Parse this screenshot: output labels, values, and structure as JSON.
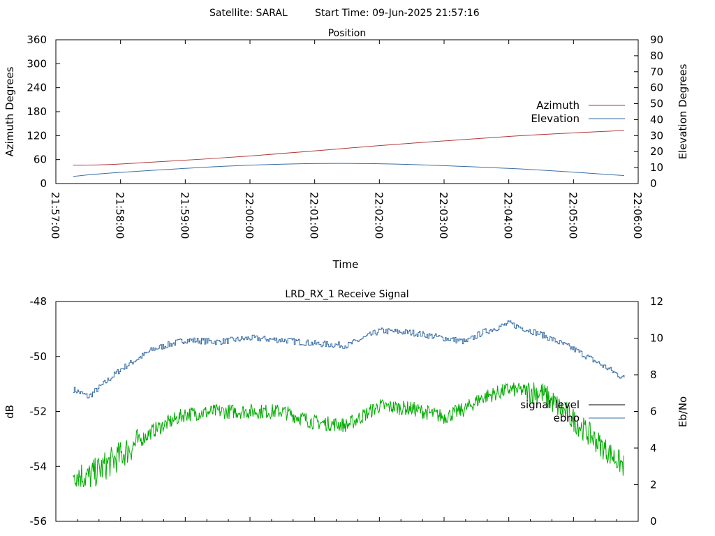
{
  "header": {
    "satellite": "Satellite: SARAL",
    "start_time": "Start Time: 09-Jun-2025 21:57:16"
  },
  "colors": {
    "azimuth": "#b03a3a",
    "elevation": "#3a6ea5",
    "signal": "#00aa00",
    "ebno": "#3a6ea5",
    "legend_signal": "#000000"
  },
  "chart_data": [
    {
      "type": "line",
      "title": "Position",
      "xlabel": "Time",
      "ylabel": "Azimuth Degrees",
      "y2label": "Elevation Degrees",
      "x_ticks": [
        "21:57:00",
        "21:58:00",
        "21:59:00",
        "22:00:00",
        "22:01:00",
        "22:02:00",
        "22:03:00",
        "22:04:00",
        "22:05:00",
        "22:06:00"
      ],
      "xlim": [
        "21:57:00",
        "22:06:00"
      ],
      "ylim": [
        0,
        360
      ],
      "y_ticks": [
        0,
        60,
        120,
        180,
        240,
        300,
        360
      ],
      "y2lim": [
        0,
        90
      ],
      "y2_ticks": [
        0,
        10,
        20,
        30,
        40,
        50,
        60,
        70,
        80,
        90
      ],
      "legend": "right",
      "series": [
        {
          "name": "Azimuth",
          "axis": "left",
          "x": [
            "21:58:00",
            "22:00:00",
            "22:02:00",
            "22:04:00",
            "22:05:47"
          ],
          "values": [
            49,
            69,
            95,
            118,
            133
          ],
          "x_start": "21:57:16",
          "y_start": 46
        },
        {
          "name": "Elevation",
          "axis": "right",
          "x": [
            "21:58:00",
            "22:00:00",
            "22:01:48",
            "22:04:00",
            "22:05:47"
          ],
          "values": [
            7,
            11.5,
            12.5,
            9.5,
            5
          ],
          "x_start": "21:57:16",
          "y_start": 4.5
        }
      ]
    },
    {
      "type": "line",
      "title": "LRD_RX_1 Receive Signal",
      "ylabel": "dB",
      "y2label": "Eb/No",
      "ylim": [
        -56,
        -48
      ],
      "y_ticks": [
        -56,
        -54,
        -52,
        -50,
        -48
      ],
      "y2lim": [
        0,
        12
      ],
      "y2_ticks": [
        0,
        2,
        4,
        6,
        8,
        10,
        12
      ],
      "legend": "right",
      "series": [
        {
          "name": "signal level",
          "axis": "left",
          "x": [
            "21:57:16",
            "21:57:30",
            "21:58:00",
            "21:58:30",
            "21:59:00",
            "21:59:30",
            "22:00:00",
            "22:00:30",
            "22:01:00",
            "22:01:30",
            "22:02:00",
            "22:02:30",
            "22:03:00",
            "22:03:20",
            "22:03:35",
            "22:04:00",
            "22:04:30",
            "22:05:00",
            "22:05:30",
            "22:05:47"
          ],
          "values": [
            -54.2,
            -54.4,
            -53.6,
            -52.7,
            -52.1,
            -52.0,
            -52.0,
            -52.0,
            -52.4,
            -52.5,
            -51.8,
            -51.9,
            -52.2,
            -51.9,
            -51.5,
            -51.2,
            -51.3,
            -52.3,
            -53.4,
            -54.0
          ]
        },
        {
          "name": "ebno",
          "axis": "right",
          "x": [
            "21:57:16",
            "21:57:30",
            "21:58:00",
            "21:58:30",
            "21:59:00",
            "21:59:30",
            "22:00:00",
            "22:00:30",
            "22:01:00",
            "22:01:30",
            "22:02:00",
            "22:02:30",
            "22:03:00",
            "22:03:20",
            "22:03:35",
            "22:04:00",
            "22:04:30",
            "22:05:00",
            "22:05:30",
            "22:05:47"
          ],
          "values": [
            7.2,
            6.8,
            8.3,
            9.4,
            9.9,
            9.8,
            10.0,
            9.9,
            9.7,
            9.6,
            10.4,
            10.3,
            10.0,
            9.8,
            10.3,
            10.8,
            10.2,
            9.4,
            8.4,
            7.8
          ]
        }
      ]
    }
  ]
}
